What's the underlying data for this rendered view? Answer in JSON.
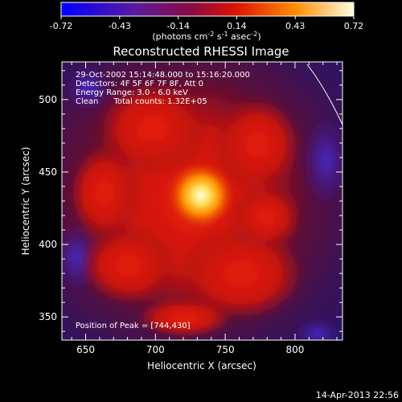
{
  "colorbar": {
    "ticks": [
      "-0.72",
      "-0.43",
      "-0.14",
      "0.14",
      "0.43",
      "0.72"
    ],
    "unit_prefix": "(photons cm",
    "unit_exp1": "-2",
    "unit_mid": " s",
    "unit_exp2": "-1",
    "unit_mid2": " asec",
    "unit_exp3": "-2",
    "unit_suffix": ")"
  },
  "chart_data": {
    "type": "heatmap",
    "title": "Reconstructed RHESSI Image",
    "xlabel": "Heliocentric X (arcsec)",
    "ylabel": "Heliocentric Y (arcsec)",
    "xlim": [
      633,
      834
    ],
    "ylim": [
      334,
      526
    ],
    "xticks": [
      650,
      700,
      750,
      800
    ],
    "yticks": [
      350,
      400,
      450,
      500
    ],
    "value_range": [
      -0.72,
      0.72
    ],
    "peak": [
      744,
      430
    ],
    "annotations": [
      "29-Oct-2002 15:14:48.000 to 15:16:20.000",
      "Detectors: 4F 5F 6F 7F 8F, Att 0",
      "Energy Range: 3.0 - 6.0 keV",
      "Clean      Total counts: 1.32E+05"
    ],
    "peak_label": "Position of Peak = [744,430]",
    "colors": {
      "negative": "#1a1aff",
      "mid_negative": "#5a1a8c",
      "mid_positive": "#c8140a",
      "high": "#ffa500",
      "peak": "#ffffdc"
    }
  },
  "timestamp": "14-Apr-2013 22:56"
}
